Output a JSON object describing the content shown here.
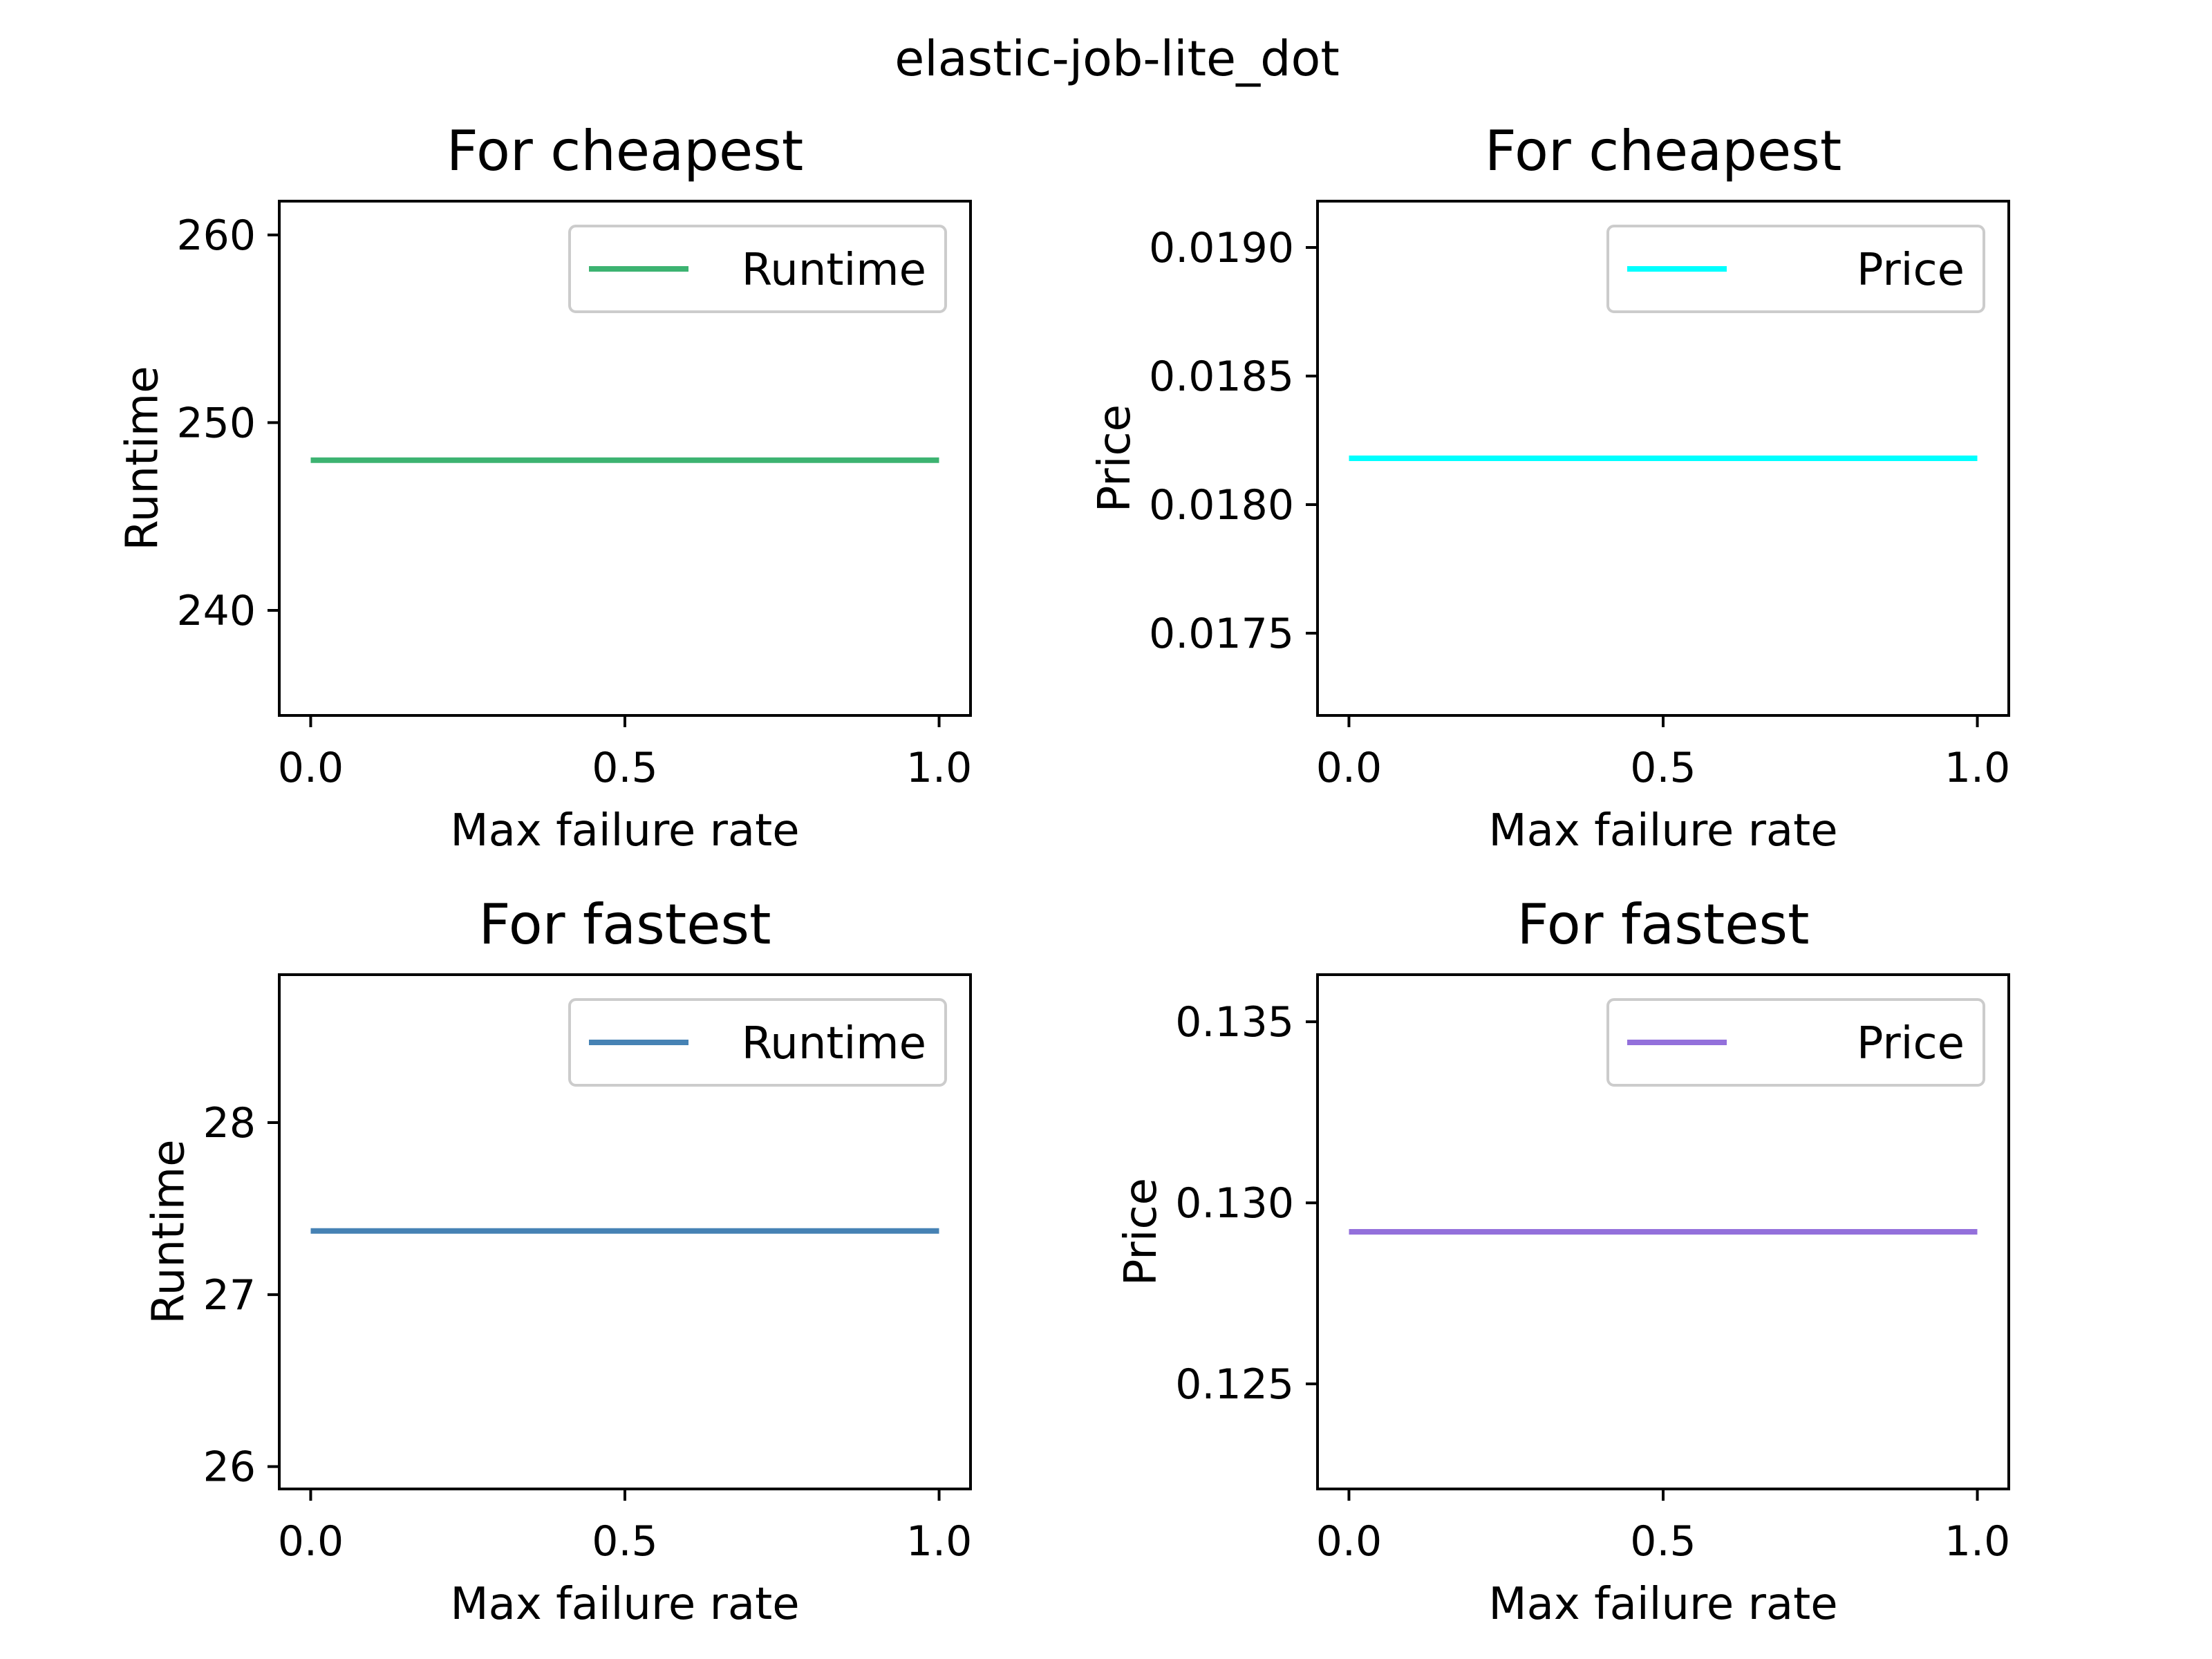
{
  "suptitle": "elastic-job-lite_dot",
  "chart_data": [
    {
      "type": "line",
      "title": "For cheapest",
      "xlabel": "Max failure rate",
      "ylabel": "Runtime",
      "xlim": [
        -0.05,
        1.05
      ],
      "ylim": [
        234.4,
        261.8
      ],
      "xticks": [
        0.0,
        0.5,
        1.0
      ],
      "xtick_labels": [
        "0.0",
        "0.5",
        "1.0"
      ],
      "yticks": [
        240,
        250,
        260
      ],
      "ytick_labels": [
        "240",
        "250",
        "260"
      ],
      "grid": false,
      "legend_position": "upper right",
      "series": [
        {
          "name": "Runtime",
          "color": "#3cb371",
          "x": [
            0.0,
            1.0
          ],
          "y": [
            248,
            248
          ]
        }
      ]
    },
    {
      "type": "line",
      "title": "For cheapest",
      "xlabel": "Max failure rate",
      "ylabel": "Price",
      "xlim": [
        -0.05,
        1.05
      ],
      "ylim": [
        0.01718,
        0.01918
      ],
      "xticks": [
        0.0,
        0.5,
        1.0
      ],
      "xtick_labels": [
        "0.0",
        "0.5",
        "1.0"
      ],
      "yticks": [
        0.0175,
        0.018,
        0.0185,
        0.019
      ],
      "ytick_labels": [
        "0.0175",
        "0.0180",
        "0.0185",
        "0.0190"
      ],
      "grid": false,
      "legend_position": "upper right",
      "series": [
        {
          "name": "Price",
          "color": "#00ffff",
          "x": [
            0.0,
            1.0
          ],
          "y": [
            0.01818,
            0.01818
          ]
        }
      ]
    },
    {
      "type": "line",
      "title": "For fastest",
      "xlabel": "Max failure rate",
      "ylabel": "Runtime",
      "xlim": [
        -0.05,
        1.05
      ],
      "ylim": [
        25.87,
        28.86
      ],
      "xticks": [
        0.0,
        0.5,
        1.0
      ],
      "xtick_labels": [
        "0.0",
        "0.5",
        "1.0"
      ],
      "yticks": [
        26,
        27,
        28
      ],
      "ytick_labels": [
        "26",
        "27",
        "28"
      ],
      "grid": false,
      "legend_position": "upper right",
      "series": [
        {
          "name": "Runtime",
          "color": "#4682b4",
          "x": [
            0.0,
            1.0
          ],
          "y": [
            27.37,
            27.37
          ]
        }
      ]
    },
    {
      "type": "line",
      "title": "For fastest",
      "xlabel": "Max failure rate",
      "ylabel": "Price",
      "xlim": [
        -0.05,
        1.05
      ],
      "ylim": [
        0.1221,
        0.1363
      ],
      "xticks": [
        0.0,
        0.5,
        1.0
      ],
      "xtick_labels": [
        "0.0",
        "0.5",
        "1.0"
      ],
      "yticks": [
        0.125,
        0.13,
        0.135
      ],
      "ytick_labels": [
        "0.125",
        "0.130",
        "0.135"
      ],
      "grid": false,
      "legend_position": "upper right",
      "series": [
        {
          "name": "Price",
          "color": "#9370db",
          "x": [
            0.0,
            1.0
          ],
          "y": [
            0.1292,
            0.1292
          ]
        }
      ]
    }
  ]
}
